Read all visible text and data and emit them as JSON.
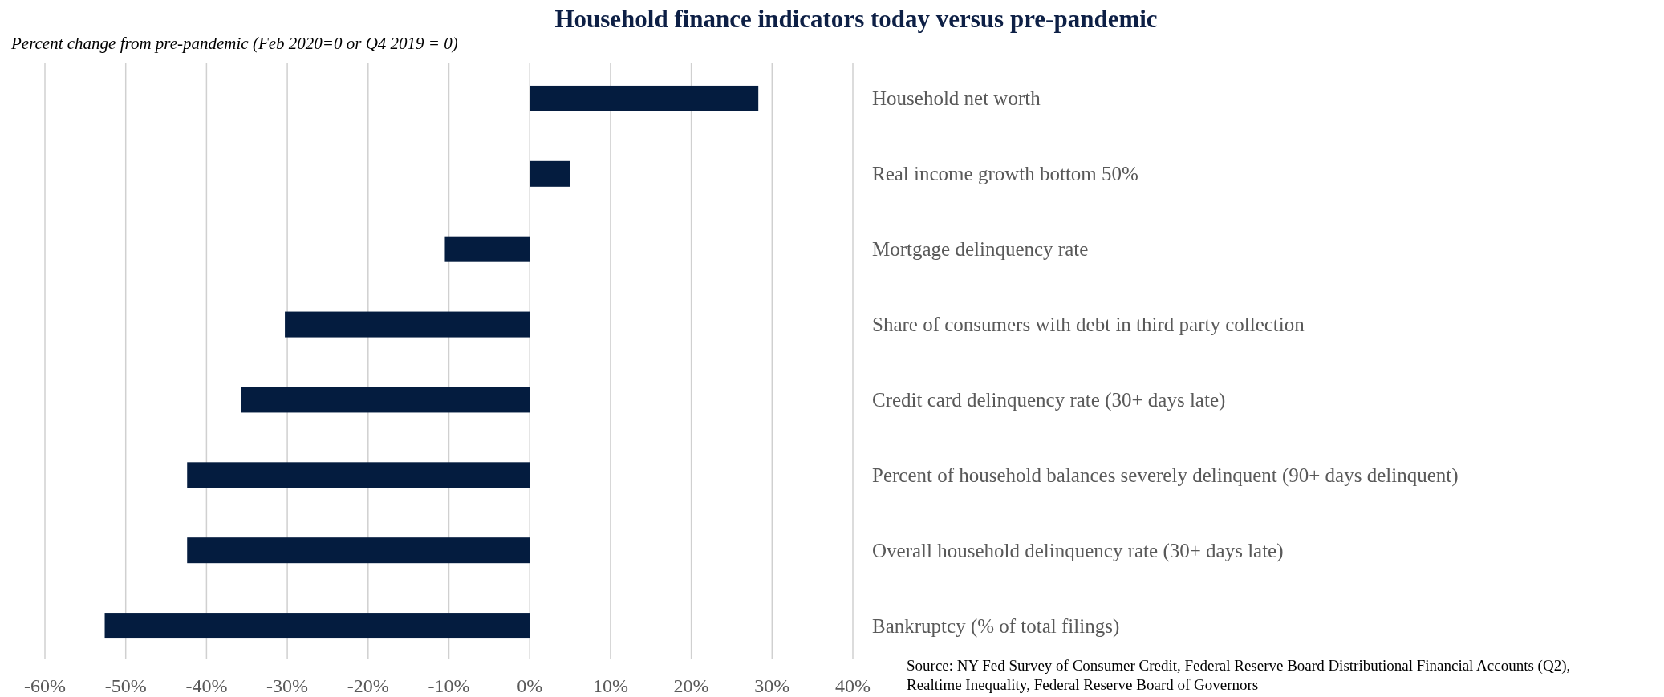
{
  "chart_data": {
    "type": "bar",
    "orientation": "horizontal",
    "title": "Household finance indicators today versus pre-pandemic",
    "subtitle": "Percent change from pre-pandemic (Feb 2020=0 or Q4 2019 = 0)",
    "categories": [
      "Household net worth",
      "Real income growth bottom 50%",
      "Mortgage delinquency rate",
      "Share of consumers with debt in third party collection",
      "Credit card delinquency rate (30+ days late)",
      "Percent of household balances severely delinquent (90+ days delinquent)",
      "Overall household delinquency rate (30+ days late)",
      "Bankruptcy (% of total filings)"
    ],
    "values": [
      28.3,
      5,
      -10.5,
      -30.3,
      -35.7,
      -42.4,
      -42.4,
      -52.6
    ],
    "color": "#041c3f",
    "xlim": [
      -60,
      40
    ],
    "xticks": [
      {
        "value": -60,
        "label": "-60%"
      },
      {
        "value": -50,
        "label": "-50%"
      },
      {
        "value": -40,
        "label": "-40%"
      },
      {
        "value": -30,
        "label": "-30%"
      },
      {
        "value": -20,
        "label": "-20%"
      },
      {
        "value": -10,
        "label": "-10%"
      },
      {
        "value": 0,
        "label": "0%"
      },
      {
        "value": 10,
        "label": "10%"
      },
      {
        "value": 20,
        "label": "20%"
      },
      {
        "value": 30,
        "label": "30%"
      },
      {
        "value": 40,
        "label": "40%"
      }
    ],
    "grid": "x",
    "annotations": [
      "Source: NY Fed Survey of Consumer Credit, Federal Reserve Board Distributional Financial Accounts (Q2), Realtime Inequality, Federal Reserve Board of Governors"
    ]
  }
}
